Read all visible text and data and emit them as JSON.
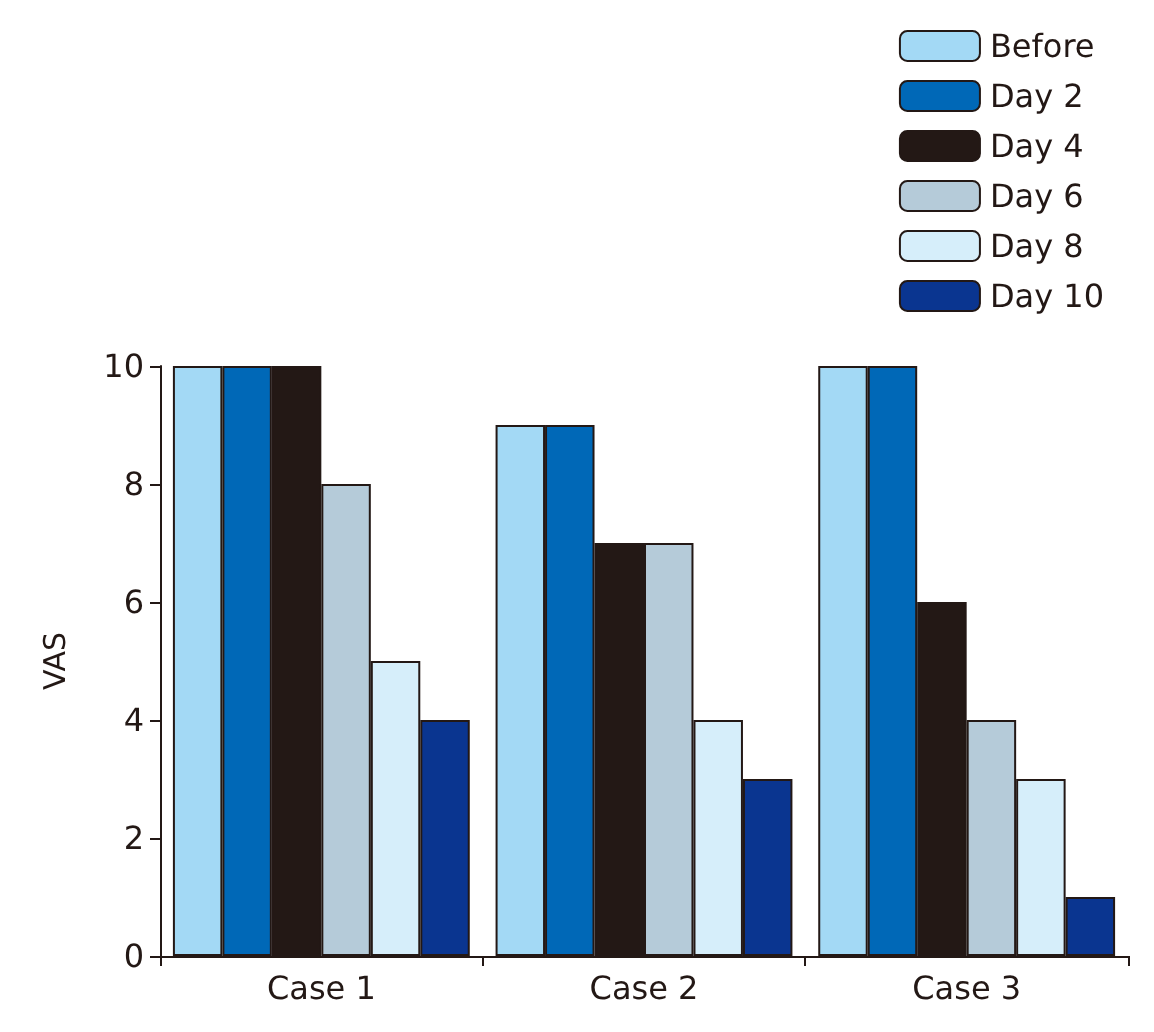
{
  "chart_data": {
    "type": "bar",
    "ylabel": "VAS",
    "categories": [
      "Case 1",
      "Case 2",
      "Case 3"
    ],
    "series": [
      {
        "name": "Before",
        "color": "#a3d9f5",
        "values": [
          10,
          9,
          10
        ]
      },
      {
        "name": "Day 2",
        "color": "#0068b7",
        "values": [
          10,
          9,
          10
        ]
      },
      {
        "name": "Day 4",
        "color": "#231815",
        "values": [
          10,
          7,
          6
        ]
      },
      {
        "name": "Day 6",
        "color": "#b5cbd9",
        "values": [
          8,
          7,
          4
        ]
      },
      {
        "name": "Day 8",
        "color": "#d6eefa",
        "values": [
          5,
          4,
          3
        ]
      },
      {
        "name": "Day 10",
        "color": "#0a3590",
        "values": [
          4,
          3,
          1
        ]
      }
    ],
    "ylim": [
      0,
      10
    ],
    "yticks": [
      0,
      2,
      4,
      6,
      8,
      10
    ],
    "grid": false,
    "legend": "top right"
  }
}
